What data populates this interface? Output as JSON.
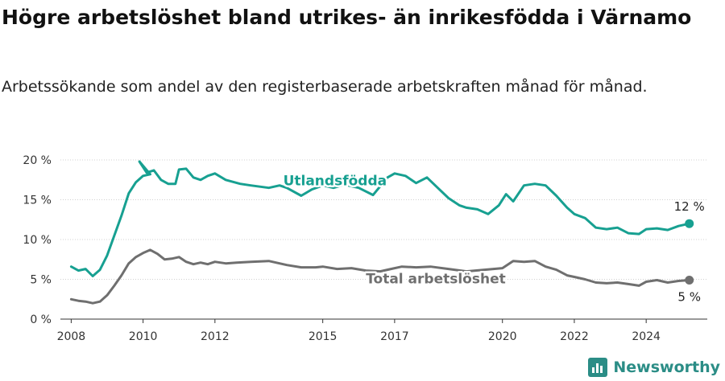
{
  "title": "Högre arbetslöshet bland utrikes- än inrikesfödda i Värnamo",
  "subtitle": "Arbetssökande som andel av den registerbaserade arbetskraften månad för månad.",
  "brand": {
    "name": "Newsworthy",
    "icon": "bar-chart-logo-icon"
  },
  "colors": {
    "series1": "#17a091",
    "series2": "#6f6f6f"
  },
  "chart_data": {
    "type": "line",
    "xlim": [
      2007.7,
      2025.7
    ],
    "ylim": [
      0,
      20
    ],
    "y_ticks": [
      0,
      5,
      10,
      15,
      20
    ],
    "y_tick_labels": [
      "0 %",
      "5 %",
      "10 %",
      "15 %",
      "20 %"
    ],
    "x_ticks": [
      2008,
      2010,
      2012,
      2015,
      2017,
      2020,
      2022,
      2024
    ],
    "x_tick_labels": [
      "2008",
      "2010",
      "2012",
      "2015",
      "2017",
      "2020",
      "2022",
      "2024"
    ],
    "grid": true,
    "series": [
      {
        "name": "Utlandsfödda",
        "end_label": "12 %",
        "points": [
          [
            2008.0,
            6.6
          ],
          [
            2008.2,
            6.1
          ],
          [
            2008.4,
            6.3
          ],
          [
            2008.6,
            5.4
          ],
          [
            2008.8,
            6.2
          ],
          [
            2009.0,
            8.0
          ],
          [
            2009.2,
            10.5
          ],
          [
            2009.4,
            13.0
          ],
          [
            2009.6,
            15.8
          ],
          [
            2009.8,
            17.2
          ],
          [
            2010.0,
            18.0
          ],
          [
            2010.2,
            18.2
          ],
          [
            2009.9,
            19.8
          ],
          [
            2010.1,
            18.4
          ],
          [
            2010.3,
            18.7
          ],
          [
            2010.5,
            17.5
          ],
          [
            2010.7,
            17.0
          ],
          [
            2010.9,
            17.0
          ],
          [
            2011.0,
            18.8
          ],
          [
            2011.2,
            18.9
          ],
          [
            2011.4,
            17.8
          ],
          [
            2011.6,
            17.5
          ],
          [
            2011.8,
            18.0
          ],
          [
            2012.0,
            18.3
          ],
          [
            2012.3,
            17.5
          ],
          [
            2012.7,
            17.0
          ],
          [
            2013.0,
            16.8
          ],
          [
            2013.5,
            16.5
          ],
          [
            2013.8,
            16.8
          ],
          [
            2014.0,
            16.5
          ],
          [
            2014.4,
            15.5
          ],
          [
            2014.7,
            16.3
          ],
          [
            2015.0,
            16.8
          ],
          [
            2015.3,
            16.5
          ],
          [
            2015.6,
            16.9
          ],
          [
            2016.0,
            16.5
          ],
          [
            2016.4,
            15.6
          ],
          [
            2016.8,
            17.8
          ],
          [
            2017.0,
            18.3
          ],
          [
            2017.3,
            18.0
          ],
          [
            2017.6,
            17.1
          ],
          [
            2017.9,
            17.8
          ],
          [
            2018.2,
            16.5
          ],
          [
            2018.5,
            15.2
          ],
          [
            2018.8,
            14.3
          ],
          [
            2019.0,
            14.0
          ],
          [
            2019.3,
            13.8
          ],
          [
            2019.6,
            13.2
          ],
          [
            2019.9,
            14.3
          ],
          [
            2020.1,
            15.7
          ],
          [
            2020.3,
            14.8
          ],
          [
            2020.6,
            16.8
          ],
          [
            2020.9,
            17.0
          ],
          [
            2021.2,
            16.8
          ],
          [
            2021.5,
            15.5
          ],
          [
            2021.8,
            14.0
          ],
          [
            2022.0,
            13.2
          ],
          [
            2022.3,
            12.7
          ],
          [
            2022.6,
            11.5
          ],
          [
            2022.9,
            11.3
          ],
          [
            2023.2,
            11.5
          ],
          [
            2023.5,
            10.8
          ],
          [
            2023.8,
            10.7
          ],
          [
            2024.0,
            11.3
          ],
          [
            2024.3,
            11.4
          ],
          [
            2024.6,
            11.2
          ],
          [
            2024.9,
            11.7
          ],
          [
            2025.2,
            12.0
          ]
        ]
      },
      {
        "name": "Total arbetslöshet",
        "end_label": "5 %",
        "points": [
          [
            2008.0,
            2.5
          ],
          [
            2008.2,
            2.3
          ],
          [
            2008.4,
            2.2
          ],
          [
            2008.6,
            2.0
          ],
          [
            2008.8,
            2.2
          ],
          [
            2009.0,
            3.0
          ],
          [
            2009.2,
            4.2
          ],
          [
            2009.4,
            5.5
          ],
          [
            2009.6,
            7.0
          ],
          [
            2009.8,
            7.8
          ],
          [
            2010.0,
            8.3
          ],
          [
            2010.2,
            8.7
          ],
          [
            2010.4,
            8.2
          ],
          [
            2010.6,
            7.5
          ],
          [
            2010.8,
            7.6
          ],
          [
            2011.0,
            7.8
          ],
          [
            2011.2,
            7.2
          ],
          [
            2011.4,
            6.9
          ],
          [
            2011.6,
            7.1
          ],
          [
            2011.8,
            6.9
          ],
          [
            2012.0,
            7.2
          ],
          [
            2012.3,
            7.0
          ],
          [
            2012.6,
            7.1
          ],
          [
            2013.0,
            7.2
          ],
          [
            2013.5,
            7.3
          ],
          [
            2014.0,
            6.8
          ],
          [
            2014.4,
            6.5
          ],
          [
            2014.8,
            6.5
          ],
          [
            2015.0,
            6.6
          ],
          [
            2015.4,
            6.3
          ],
          [
            2015.8,
            6.4
          ],
          [
            2016.2,
            6.1
          ],
          [
            2016.6,
            6.0
          ],
          [
            2016.9,
            6.3
          ],
          [
            2017.2,
            6.6
          ],
          [
            2017.6,
            6.5
          ],
          [
            2018.0,
            6.6
          ],
          [
            2018.5,
            6.3
          ],
          [
            2019.0,
            6.0
          ],
          [
            2019.5,
            6.2
          ],
          [
            2020.0,
            6.4
          ],
          [
            2020.3,
            7.3
          ],
          [
            2020.6,
            7.2
          ],
          [
            2020.9,
            7.3
          ],
          [
            2021.2,
            6.6
          ],
          [
            2021.5,
            6.2
          ],
          [
            2021.8,
            5.5
          ],
          [
            2022.0,
            5.3
          ],
          [
            2022.3,
            5.0
          ],
          [
            2022.6,
            4.6
          ],
          [
            2022.9,
            4.5
          ],
          [
            2023.2,
            4.6
          ],
          [
            2023.5,
            4.4
          ],
          [
            2023.8,
            4.2
          ],
          [
            2024.0,
            4.7
          ],
          [
            2024.3,
            4.9
          ],
          [
            2024.6,
            4.6
          ],
          [
            2024.9,
            4.8
          ],
          [
            2025.2,
            4.9
          ]
        ]
      }
    ]
  }
}
